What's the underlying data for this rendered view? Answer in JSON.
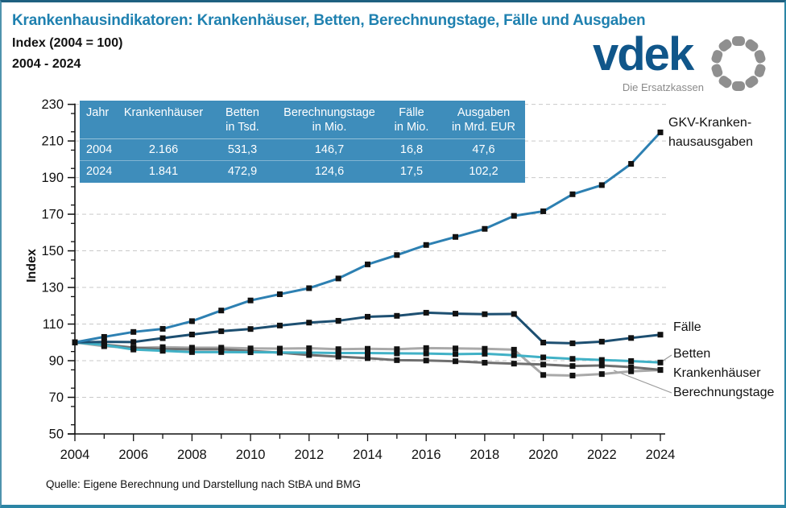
{
  "page": {
    "title": "Krankenhausindikatoren: Krankenhäuser, Betten, Berechnungstage, Fälle und Ausgaben",
    "subtitle1": "Index (2004 = 100)",
    "subtitle2": "2004 - 2024",
    "source": "Quelle: Eigene Berechnung und Darstellung nach StBA und BMG",
    "title_color": "#1f81b0"
  },
  "logo": {
    "wordmark": "vdek",
    "tagline": "Die Ersatzkassen",
    "wordmark_color": "#10568a",
    "ring_color": "#8f8f8f"
  },
  "table": {
    "background_color": "#3e8dbb",
    "col_headers": [
      {
        "l1": "Jahr",
        "l2": ""
      },
      {
        "l1": "Krankenhäuser",
        "l2": ""
      },
      {
        "l1": "Betten",
        "l2": "in Tsd."
      },
      {
        "l1": "Berechnungstage",
        "l2": "in Mio."
      },
      {
        "l1": "Fälle",
        "l2": "in Mio."
      },
      {
        "l1": "Ausgaben",
        "l2": "in Mrd. EUR"
      }
    ],
    "rows": [
      [
        "2004",
        "2.166",
        "531,3",
        "146,7",
        "16,8",
        "47,6"
      ],
      [
        "2024",
        "1.841",
        "472,9",
        "124,6",
        "17,5",
        "102,2"
      ]
    ]
  },
  "series_labels": {
    "gkv_line1": "GKV-Kranken-",
    "gkv_line2": "hausausgaben",
    "faelle": "Fälle",
    "betten": "Betten",
    "krankenhaeuser": "Krankenhäuser",
    "berechnungstage": "Berechnungstage"
  },
  "chart_data": {
    "type": "line",
    "title": "Krankenhausindikatoren: Krankenhäuser, Betten, Berechnungstage, Fälle und Ausgaben",
    "ylabel": "Index",
    "xlabel": "",
    "ylim": [
      50,
      230
    ],
    "grid": "horizontal-dashed",
    "y_major_ticks": [
      50,
      70,
      90,
      110,
      130,
      150,
      170,
      190,
      210,
      230
    ],
    "y_gridlines": [
      70,
      90,
      110,
      130,
      150,
      170,
      190,
      210,
      230
    ],
    "y_minor_step": 5,
    "x_labeled_ticks": [
      2004,
      2006,
      2008,
      2010,
      2012,
      2014,
      2016,
      2018,
      2020,
      2022,
      2024
    ],
    "x": [
      2004,
      2005,
      2006,
      2007,
      2008,
      2009,
      2010,
      2011,
      2012,
      2013,
      2014,
      2015,
      2016,
      2017,
      2018,
      2019,
      2020,
      2021,
      2022,
      2023,
      2024
    ],
    "marker": "black-square",
    "marker_color": "#111111",
    "series": [
      {
        "name": "Berechnungstage",
        "color": "#a9a9a9",
        "values": [
          100,
          97.9,
          97.0,
          97.4,
          97.1,
          97.1,
          96.7,
          96.6,
          96.8,
          96.3,
          96.5,
          96.3,
          96.9,
          96.7,
          96.5,
          96.0,
          82.2,
          81.9,
          82.7,
          84.2,
          84.9
        ]
      },
      {
        "name": "Krankenhäuser",
        "color": "#6f6f6f",
        "values": [
          100,
          98.8,
          97.1,
          96.4,
          96.2,
          96.2,
          95.3,
          94.4,
          93.1,
          92.2,
          91.4,
          90.3,
          90.1,
          89.7,
          88.9,
          88.4,
          87.9,
          87.1,
          87.4,
          86.5,
          85.0
        ]
      },
      {
        "name": "Betten",
        "color": "#41b1c6",
        "values": [
          100,
          98.6,
          96.1,
          95.4,
          94.7,
          94.7,
          94.6,
          94.5,
          94.4,
          94.2,
          94.2,
          94.0,
          93.9,
          93.6,
          93.8,
          93.0,
          91.8,
          91.0,
          90.4,
          89.8,
          89.0
        ]
      },
      {
        "name": "Fälle",
        "color": "#1d4f71",
        "values": [
          100,
          100.3,
          100.2,
          102.3,
          104.3,
          106.1,
          107.3,
          109.2,
          110.8,
          111.8,
          114.0,
          114.5,
          116.2,
          115.7,
          115.4,
          115.5,
          99.9,
          99.5,
          100.4,
          102.4,
          104.2
        ]
      },
      {
        "name": "GKV-Krankenhausausgaben",
        "color": "#2d80b2",
        "values": [
          100,
          103.0,
          105.7,
          107.4,
          111.6,
          117.4,
          122.9,
          126.3,
          129.6,
          134.9,
          142.6,
          147.7,
          153.2,
          157.6,
          162.0,
          169.1,
          171.6,
          180.9,
          185.9,
          197.5,
          214.7
        ]
      }
    ]
  }
}
